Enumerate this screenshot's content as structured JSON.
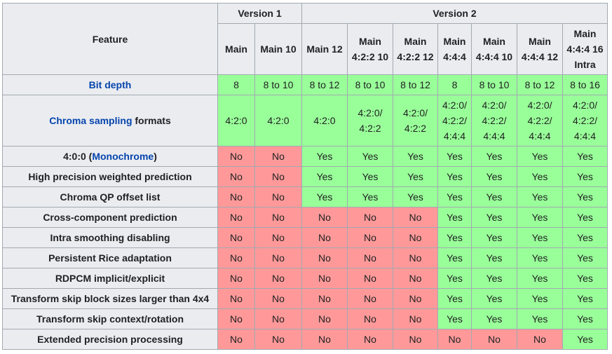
{
  "header": {
    "feature": "Feature",
    "version1": "Version 1",
    "version2": "Version 2",
    "profiles": [
      [
        "Main"
      ],
      [
        "Main 10"
      ],
      [
        "Main 12"
      ],
      [
        "Main",
        "4:2:2 10"
      ],
      [
        "Main",
        "4:2:2 12"
      ],
      [
        "Main",
        "4:4:4"
      ],
      [
        "Main",
        "4:4:4 10"
      ],
      [
        "Main",
        "4:4:4 12"
      ],
      [
        "Main",
        "4:4:4 16",
        "Intra"
      ]
    ]
  },
  "rows": {
    "bit_depth": {
      "label_link": "Bit depth",
      "values": [
        "8",
        "8 to 10",
        "8 to 12",
        "8 to 10",
        "8 to 12",
        "8",
        "8 to 10",
        "8 to 12",
        "8 to 16"
      ]
    },
    "chroma": {
      "label_link": "Chroma sampling",
      "label_rest": " formats",
      "values": [
        [
          "4:2:0"
        ],
        [
          "4:2:0"
        ],
        [
          "4:2:0"
        ],
        [
          "4:2:0/",
          "4:2:2"
        ],
        [
          "4:2:0/",
          "4:2:2"
        ],
        [
          "4:2:0/",
          "4:2:2/",
          "4:4:4"
        ],
        [
          "4:2:0/",
          "4:2:2/",
          "4:4:4"
        ],
        [
          "4:2:0/",
          "4:2:2/",
          "4:4:4"
        ],
        [
          "4:2:0/",
          "4:2:2/",
          "4:4:4"
        ]
      ]
    },
    "monochrome": {
      "label_pre": "4:0:0 (",
      "label_link": "Monochrome",
      "label_post": ")",
      "values": [
        "No",
        "No",
        "Yes",
        "Yes",
        "Yes",
        "Yes",
        "Yes",
        "Yes",
        "Yes"
      ]
    },
    "features": [
      {
        "label": "High precision weighted prediction",
        "values": [
          "No",
          "No",
          "Yes",
          "Yes",
          "Yes",
          "Yes",
          "Yes",
          "Yes",
          "Yes"
        ]
      },
      {
        "label": "Chroma QP offset list",
        "values": [
          "No",
          "No",
          "Yes",
          "Yes",
          "Yes",
          "Yes",
          "Yes",
          "Yes",
          "Yes"
        ]
      },
      {
        "label": "Cross-component prediction",
        "values": [
          "No",
          "No",
          "No",
          "No",
          "No",
          "Yes",
          "Yes",
          "Yes",
          "Yes"
        ]
      },
      {
        "label": "Intra smoothing disabling",
        "values": [
          "No",
          "No",
          "No",
          "No",
          "No",
          "Yes",
          "Yes",
          "Yes",
          "Yes"
        ]
      },
      {
        "label": "Persistent Rice adaptation",
        "values": [
          "No",
          "No",
          "No",
          "No",
          "No",
          "Yes",
          "Yes",
          "Yes",
          "Yes"
        ]
      },
      {
        "label": "RDPCM implicit/explicit",
        "values": [
          "No",
          "No",
          "No",
          "No",
          "No",
          "Yes",
          "Yes",
          "Yes",
          "Yes"
        ]
      },
      {
        "label": "Transform skip block sizes larger than 4x4",
        "values": [
          "No",
          "No",
          "No",
          "No",
          "No",
          "Yes",
          "Yes",
          "Yes",
          "Yes"
        ]
      },
      {
        "label": "Transform skip context/rotation",
        "values": [
          "No",
          "No",
          "No",
          "No",
          "No",
          "Yes",
          "Yes",
          "Yes",
          "Yes"
        ]
      },
      {
        "label": "Extended precision processing",
        "values": [
          "No",
          "No",
          "No",
          "No",
          "No",
          "No",
          "No",
          "No",
          "Yes"
        ]
      }
    ]
  },
  "colors": {
    "yes": "#99ff99",
    "no": "#ff9999",
    "header": "#eaecf0",
    "border": "#a2a9b1",
    "link": "#0645ad"
  }
}
